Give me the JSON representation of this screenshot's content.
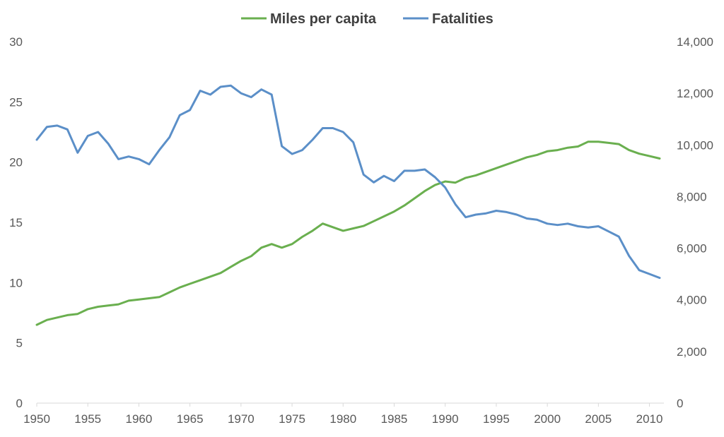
{
  "chart_data": {
    "type": "line",
    "title": "",
    "xlabel": "",
    "ylabel": "",
    "y2label": "",
    "legend_position": "top",
    "grid": false,
    "xlim": [
      1950,
      2011
    ],
    "ylim": [
      0,
      30
    ],
    "y2lim": [
      0,
      14000
    ],
    "x_ticks": [
      1950,
      1955,
      1960,
      1965,
      1970,
      1975,
      1980,
      1985,
      1990,
      1995,
      2000,
      2005,
      2010
    ],
    "x_tick_labels": [
      "1950",
      "1955",
      "1960",
      "1965",
      "1970",
      "1975",
      "1980",
      "1985",
      "1990",
      "1995",
      "2000",
      "2005",
      "2010"
    ],
    "y_ticks": [
      0,
      5,
      10,
      15,
      20,
      25,
      30
    ],
    "y_tick_labels": [
      "0",
      "5",
      "10",
      "15",
      "20",
      "25",
      "30"
    ],
    "y2_ticks": [
      0,
      2000,
      4000,
      6000,
      8000,
      10000,
      12000,
      14000
    ],
    "y2_tick_labels": [
      "0",
      "2,000",
      "4,000",
      "6,000",
      "8,000",
      "10,000",
      "12,000",
      "14,000"
    ],
    "x": [
      1950,
      1951,
      1952,
      1953,
      1954,
      1955,
      1956,
      1957,
      1958,
      1959,
      1960,
      1961,
      1962,
      1963,
      1964,
      1965,
      1966,
      1967,
      1968,
      1969,
      1970,
      1971,
      1972,
      1973,
      1974,
      1975,
      1976,
      1977,
      1978,
      1979,
      1980,
      1981,
      1982,
      1983,
      1984,
      1985,
      1986,
      1987,
      1988,
      1989,
      1990,
      1991,
      1992,
      1993,
      1994,
      1995,
      1996,
      1997,
      1998,
      1999,
      2000,
      2001,
      2002,
      2003,
      2004,
      2005,
      2006,
      2007,
      2008,
      2009,
      2010,
      2011
    ],
    "series": [
      {
        "name": "Miles per capita",
        "axis": "left",
        "color": "#6AAF4F",
        "values": [
          6.5,
          6.9,
          7.1,
          7.3,
          7.4,
          7.8,
          8.0,
          8.1,
          8.2,
          8.5,
          8.6,
          8.7,
          8.8,
          9.2,
          9.6,
          9.9,
          10.2,
          10.5,
          10.8,
          11.3,
          11.8,
          12.2,
          12.9,
          13.2,
          12.9,
          13.2,
          13.8,
          14.3,
          14.9,
          14.6,
          14.3,
          14.5,
          14.7,
          15.1,
          15.5,
          15.9,
          16.4,
          17.0,
          17.6,
          18.1,
          18.4,
          18.3,
          18.7,
          18.9,
          19.2,
          19.5,
          19.8,
          20.1,
          20.4,
          20.6,
          20.9,
          21.0,
          21.2,
          21.3,
          21.7,
          21.7,
          21.6,
          21.5,
          21.0,
          20.7,
          20.5,
          20.3
        ]
      },
      {
        "name": "Fatalities",
        "axis": "right",
        "color": "#5B8FC8",
        "values": [
          10200,
          10700,
          10750,
          10600,
          9700,
          10350,
          10500,
          10050,
          9450,
          9550,
          9450,
          9250,
          9800,
          10300,
          11150,
          11350,
          12100,
          11950,
          12250,
          12300,
          12000,
          11850,
          12150,
          11950,
          9950,
          9650,
          9800,
          10200,
          10650,
          10650,
          10500,
          10100,
          8850,
          8550,
          8800,
          8600,
          9000,
          9000,
          9050,
          8750,
          8350,
          7700,
          7200,
          7300,
          7350,
          7450,
          7400,
          7300,
          7150,
          7100,
          6950,
          6900,
          6950,
          6850,
          6800,
          6850,
          6650,
          6450,
          5700,
          5150,
          5000,
          4850
        ]
      }
    ]
  }
}
